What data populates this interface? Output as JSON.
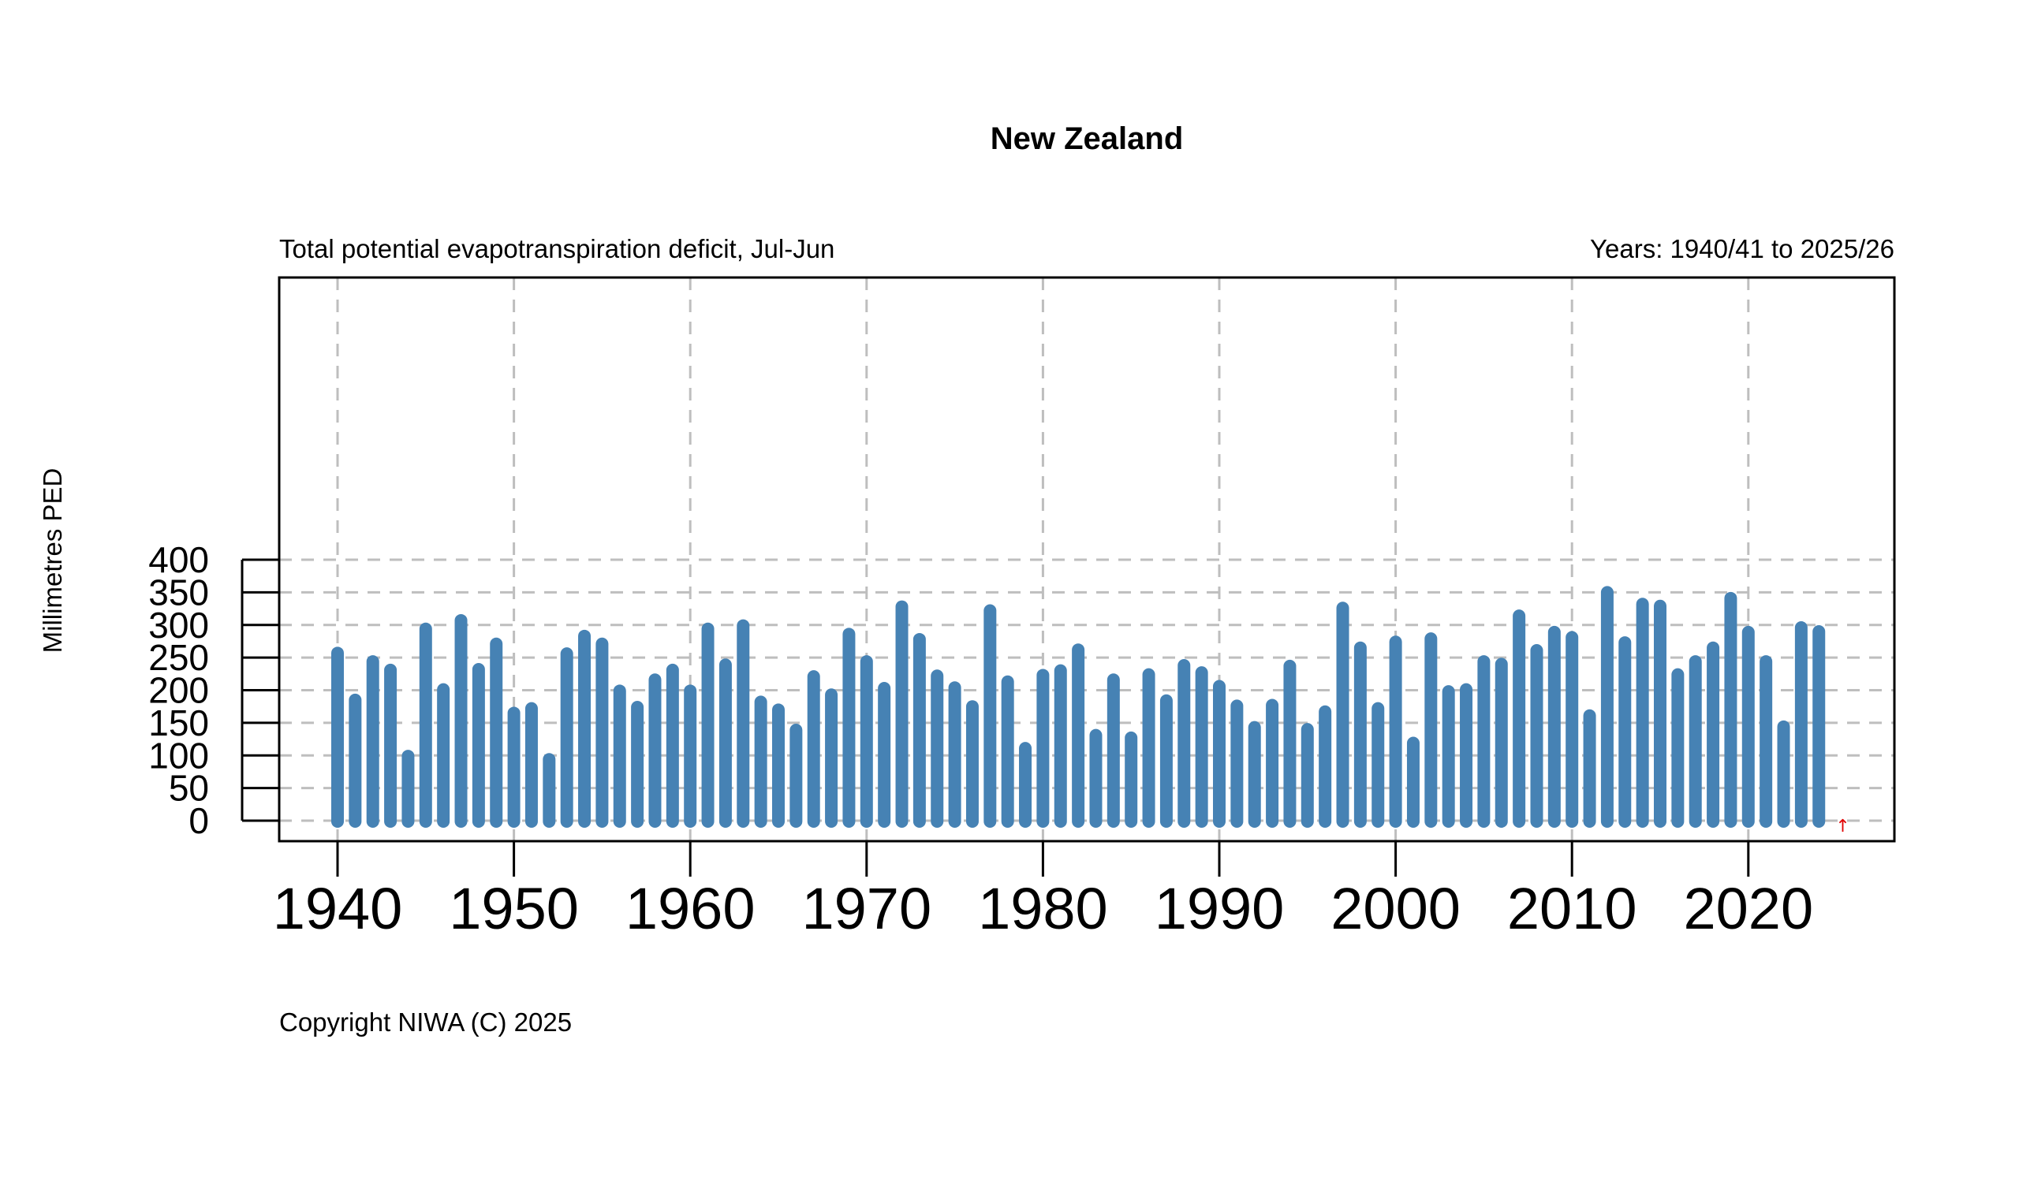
{
  "chart_data": {
    "type": "bar",
    "title": "New Zealand",
    "subtitle_left": "Total potential evapotranspiration deficit, Jul-Jun",
    "subtitle_right": "Years: 1940/41 to 2025/26",
    "ylabel": "Millimetres PED",
    "xlabel": "",
    "copyright": "Copyright NIWA (C)  2025",
    "ylim": [
      0,
      400
    ],
    "xlim": [
      1937,
      2029
    ],
    "yticks": [
      0,
      50,
      100,
      150,
      200,
      250,
      300,
      350,
      400
    ],
    "xticks": [
      1940,
      1950,
      1960,
      1970,
      1980,
      1990,
      2000,
      2010,
      2020
    ],
    "grid": true,
    "bar_color": "#4682b4",
    "grid_color": "#bebebe",
    "marker": {
      "x": 2025,
      "y": 0,
      "text": "↑",
      "color": "#e00000"
    },
    "x": [
      1940,
      1941,
      1942,
      1943,
      1944,
      1945,
      1946,
      1947,
      1948,
      1949,
      1950,
      1951,
      1952,
      1953,
      1954,
      1955,
      1956,
      1957,
      1958,
      1959,
      1960,
      1961,
      1962,
      1963,
      1964,
      1965,
      1966,
      1967,
      1968,
      1969,
      1970,
      1971,
      1972,
      1973,
      1974,
      1975,
      1976,
      1977,
      1978,
      1979,
      1980,
      1981,
      1982,
      1983,
      1984,
      1985,
      1986,
      1987,
      1988,
      1989,
      1990,
      1991,
      1992,
      1993,
      1994,
      1995,
      1996,
      1997,
      1998,
      1999,
      2000,
      2001,
      2002,
      2003,
      2004,
      2005,
      2006,
      2007,
      2008,
      2009,
      2010,
      2011,
      2012,
      2013,
      2014,
      2015,
      2016,
      2017,
      2018,
      2019,
      2020,
      2021,
      2022,
      2023,
      2024
    ],
    "values": [
      257,
      185,
      244,
      231,
      99,
      294,
      201,
      307,
      232,
      271,
      165,
      172,
      94,
      256,
      283,
      271,
      199,
      174,
      216,
      231,
      199,
      294,
      239,
      299,
      182,
      170,
      139,
      221,
      193,
      286,
      244,
      203,
      328,
      278,
      222,
      204,
      175,
      322,
      213,
      111,
      223,
      230,
      262,
      131,
      216,
      127,
      224,
      184,
      238,
      227,
      206,
      176,
      143,
      177,
      237,
      140,
      167,
      326,
      265,
      172,
      274,
      119,
      279,
      198,
      201,
      244,
      240,
      314,
      261,
      289,
      281,
      161,
      350,
      273,
      332,
      329,
      224,
      244,
      265,
      341,
      289,
      244,
      144,
      296,
      290
    ]
  }
}
